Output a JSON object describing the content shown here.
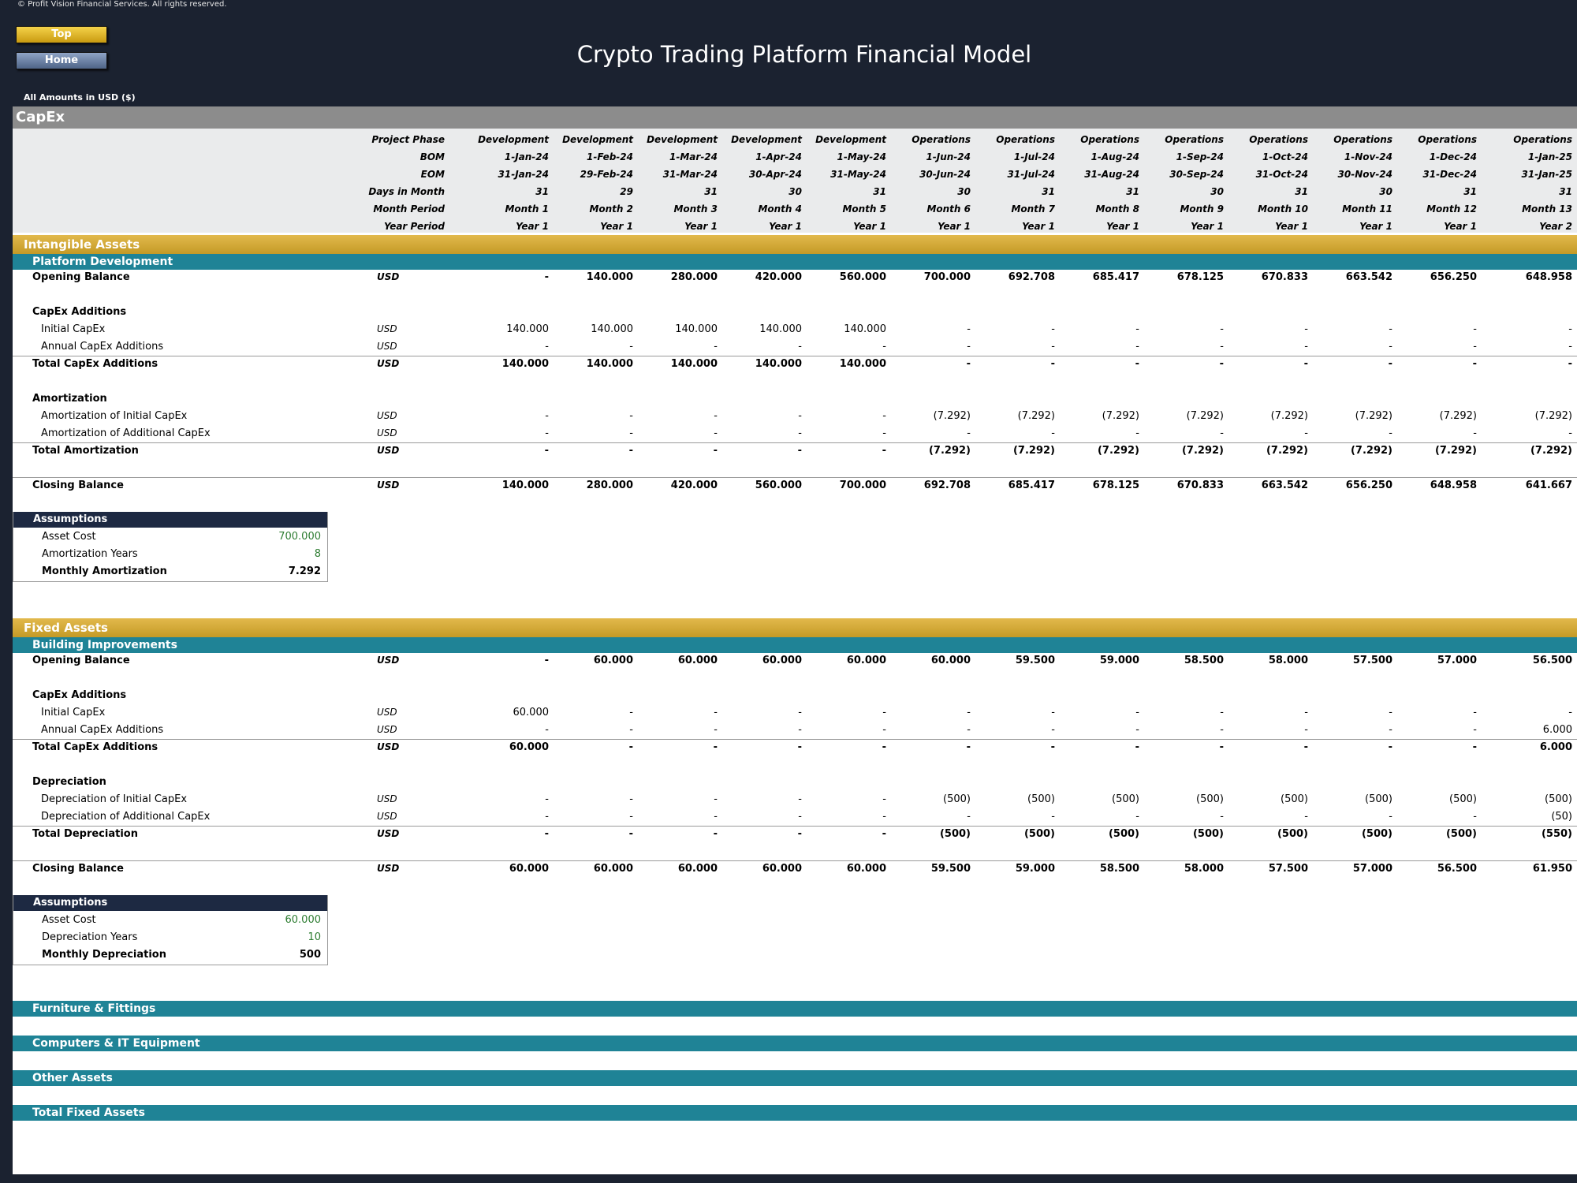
{
  "header": {
    "copyright": "© Profit Vision Financial Services. All rights reserved.",
    "top_button": "Top",
    "home_button": "Home",
    "title": "Crypto Trading Platform Financial Model",
    "currency_note": "All Amounts in  USD ($)"
  },
  "section_title": "CapEx",
  "timeline": {
    "labels": [
      "Project Phase",
      "BOM",
      "EOM",
      "Days in Month",
      "Month Period",
      "Year Period"
    ],
    "phase": [
      "Development",
      "Development",
      "Development",
      "Development",
      "Development",
      "Operations",
      "Operations",
      "Operations",
      "Operations",
      "Operations",
      "Operations",
      "Operations",
      "Operations"
    ],
    "bom": [
      "1-Jan-24",
      "1-Feb-24",
      "1-Mar-24",
      "1-Apr-24",
      "1-May-24",
      "1-Jun-24",
      "1-Jul-24",
      "1-Aug-24",
      "1-Sep-24",
      "1-Oct-24",
      "1-Nov-24",
      "1-Dec-24",
      "1-Jan-25"
    ],
    "eom": [
      "31-Jan-24",
      "29-Feb-24",
      "31-Mar-24",
      "30-Apr-24",
      "31-May-24",
      "30-Jun-24",
      "31-Jul-24",
      "31-Aug-24",
      "30-Sep-24",
      "31-Oct-24",
      "30-Nov-24",
      "31-Dec-24",
      "31-Jan-25"
    ],
    "days": [
      "31",
      "29",
      "31",
      "30",
      "31",
      "30",
      "31",
      "31",
      "30",
      "31",
      "30",
      "31",
      "31"
    ],
    "month": [
      "Month 1",
      "Month 2",
      "Month 3",
      "Month 4",
      "Month 5",
      "Month 6",
      "Month 7",
      "Month 8",
      "Month 9",
      "Month 10",
      "Month 11",
      "Month 12",
      "Month 13"
    ],
    "year": [
      "Year 1",
      "Year 1",
      "Year 1",
      "Year 1",
      "Year 1",
      "Year 1",
      "Year 1",
      "Year 1",
      "Year 1",
      "Year 1",
      "Year 1",
      "Year 1",
      "Year 2"
    ]
  },
  "intangible": {
    "title": "Intangible Assets",
    "sub": "Platform Development",
    "unit": "USD",
    "rows": {
      "opening": {
        "label": "Opening Balance",
        "values": [
          "-",
          "140.000",
          "280.000",
          "420.000",
          "560.000",
          "700.000",
          "692.708",
          "685.417",
          "678.125",
          "670.833",
          "663.542",
          "656.250",
          "648.958"
        ]
      },
      "additions_head": "CapEx Additions",
      "initial": {
        "label": "Initial CapEx",
        "values": [
          "140.000",
          "140.000",
          "140.000",
          "140.000",
          "140.000",
          "-",
          "-",
          "-",
          "-",
          "-",
          "-",
          "-",
          "-"
        ]
      },
      "annual": {
        "label": "Annual CapEx Additions",
        "values": [
          "-",
          "-",
          "-",
          "-",
          "-",
          "-",
          "-",
          "-",
          "-",
          "-",
          "-",
          "-",
          "-"
        ]
      },
      "total_add": {
        "label": "Total CapEx Additions",
        "values": [
          "140.000",
          "140.000",
          "140.000",
          "140.000",
          "140.000",
          "-",
          "-",
          "-",
          "-",
          "-",
          "-",
          "-",
          "-"
        ]
      },
      "dep_head": "Amortization",
      "dep_initial": {
        "label": "Amortization of Initial CapEx",
        "values": [
          "-",
          "-",
          "-",
          "-",
          "-",
          "(7.292)",
          "(7.292)",
          "(7.292)",
          "(7.292)",
          "(7.292)",
          "(7.292)",
          "(7.292)",
          "(7.292)"
        ]
      },
      "dep_add": {
        "label": "Amortization of Additional CapEx",
        "values": [
          "-",
          "-",
          "-",
          "-",
          "-",
          "-",
          "-",
          "-",
          "-",
          "-",
          "-",
          "-",
          "-"
        ]
      },
      "dep_total": {
        "label": "Total Amortization",
        "values": [
          "-",
          "-",
          "-",
          "-",
          "-",
          "(7.292)",
          "(7.292)",
          "(7.292)",
          "(7.292)",
          "(7.292)",
          "(7.292)",
          "(7.292)",
          "(7.292)"
        ]
      },
      "closing": {
        "label": "Closing Balance",
        "values": [
          "140.000",
          "280.000",
          "420.000",
          "560.000",
          "700.000",
          "692.708",
          "685.417",
          "678.125",
          "670.833",
          "663.542",
          "656.250",
          "648.958",
          "641.667"
        ]
      }
    },
    "assumptions": {
      "title": "Assumptions",
      "cost_label": "Asset Cost",
      "cost": "700.000",
      "years_label": "Amortization Years",
      "years": "8",
      "monthly_label": "Monthly Amortization",
      "monthly": "7.292"
    }
  },
  "fixed": {
    "title": "Fixed Assets",
    "sub": "Building Improvements",
    "unit": "USD",
    "rows": {
      "opening": {
        "label": "Opening Balance",
        "values": [
          "-",
          "60.000",
          "60.000",
          "60.000",
          "60.000",
          "60.000",
          "59.500",
          "59.000",
          "58.500",
          "58.000",
          "57.500",
          "57.000",
          "56.500"
        ]
      },
      "additions_head": "CapEx Additions",
      "initial": {
        "label": "Initial CapEx",
        "values": [
          "60.000",
          "-",
          "-",
          "-",
          "-",
          "-",
          "-",
          "-",
          "-",
          "-",
          "-",
          "-",
          "-"
        ]
      },
      "annual": {
        "label": "Annual CapEx Additions",
        "values": [
          "-",
          "-",
          "-",
          "-",
          "-",
          "-",
          "-",
          "-",
          "-",
          "-",
          "-",
          "-",
          "6.000"
        ]
      },
      "total_add": {
        "label": "Total CapEx Additions",
        "values": [
          "60.000",
          "-",
          "-",
          "-",
          "-",
          "-",
          "-",
          "-",
          "-",
          "-",
          "-",
          "-",
          "6.000"
        ]
      },
      "dep_head": "Depreciation",
      "dep_initial": {
        "label": "Depreciation of Initial CapEx",
        "values": [
          "-",
          "-",
          "-",
          "-",
          "-",
          "(500)",
          "(500)",
          "(500)",
          "(500)",
          "(500)",
          "(500)",
          "(500)",
          "(500)"
        ]
      },
      "dep_add": {
        "label": "Depreciation of Additional CapEx",
        "values": [
          "-",
          "-",
          "-",
          "-",
          "-",
          "-",
          "-",
          "-",
          "-",
          "-",
          "-",
          "-",
          "(50)"
        ]
      },
      "dep_total": {
        "label": "Total Depreciation",
        "values": [
          "-",
          "-",
          "-",
          "-",
          "-",
          "(500)",
          "(500)",
          "(500)",
          "(500)",
          "(500)",
          "(500)",
          "(500)",
          "(550)"
        ]
      },
      "closing": {
        "label": "Closing Balance",
        "values": [
          "60.000",
          "60.000",
          "60.000",
          "60.000",
          "60.000",
          "59.500",
          "59.000",
          "58.500",
          "58.000",
          "57.500",
          "57.000",
          "56.500",
          "61.950"
        ]
      }
    },
    "assumptions": {
      "title": "Assumptions",
      "cost_label": "Asset Cost",
      "cost": "60.000",
      "years_label": "Depreciation Years",
      "years": "10",
      "monthly_label": "Monthly Depreciation",
      "monthly": "500"
    }
  },
  "other_bands": [
    "Furniture & Fittings",
    "Computers & IT Equipment",
    "Other Assets",
    "Total Fixed Assets"
  ]
}
